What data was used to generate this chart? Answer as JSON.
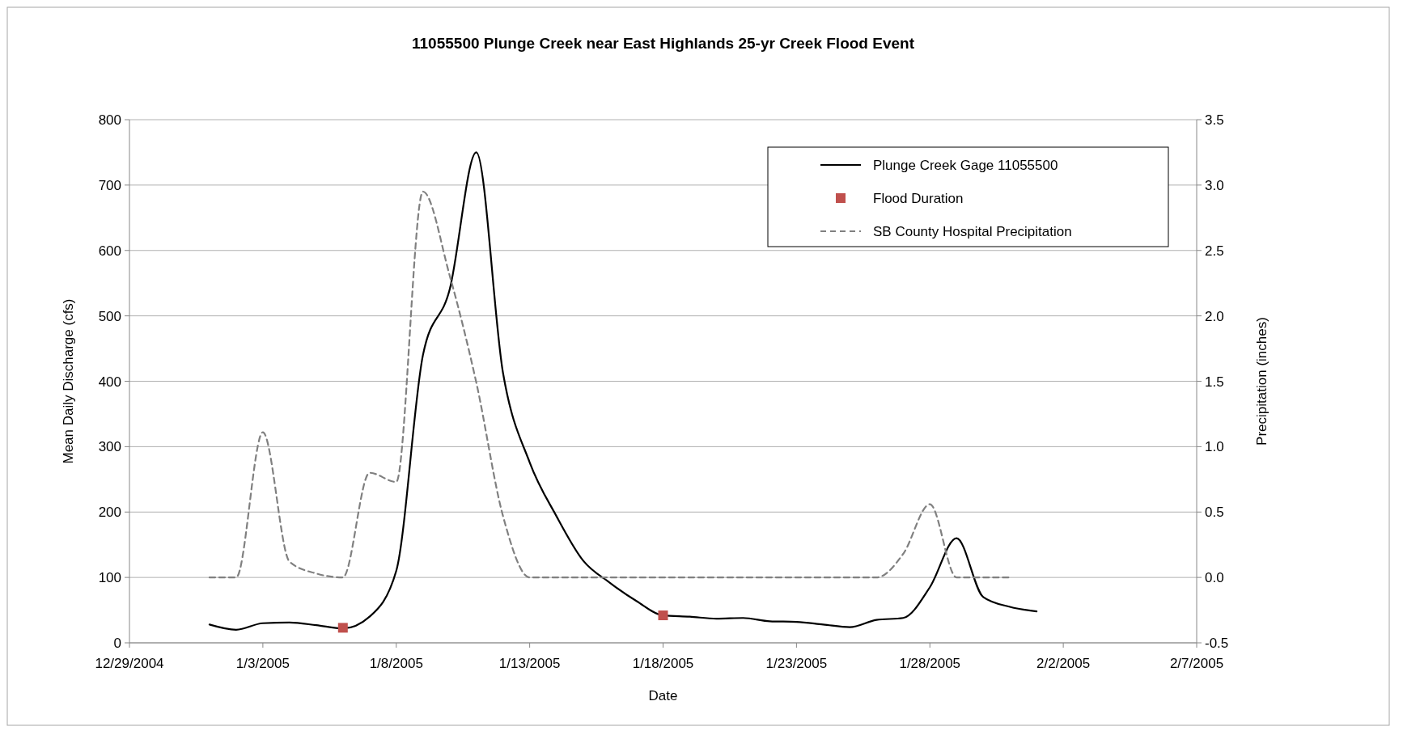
{
  "chart_data": {
    "type": "line",
    "title": "11055500 Plunge Creek near East Highlands 25-yr Creek Flood Event",
    "xlabel": "Date",
    "ylabel": "Mean Daily Discharge (cfs)",
    "y2label": "Precipitation (inches)",
    "xlim": [
      "2004-12-29",
      "2005-02-07"
    ],
    "xticks": [
      {
        "value": "2004-12-29",
        "label": "12/29/2004"
      },
      {
        "value": "2005-01-03",
        "label": "1/3/2005"
      },
      {
        "value": "2005-01-08",
        "label": "1/8/2005"
      },
      {
        "value": "2005-01-13",
        "label": "1/13/2005"
      },
      {
        "value": "2005-01-18",
        "label": "1/18/2005"
      },
      {
        "value": "2005-01-23",
        "label": "1/23/2005"
      },
      {
        "value": "2005-01-28",
        "label": "1/28/2005"
      },
      {
        "value": "2005-02-02",
        "label": "2/2/2005"
      },
      {
        "value": "2005-02-07",
        "label": "2/7/2005"
      }
    ],
    "ylim": [
      0,
      800
    ],
    "yticks": [
      0,
      100,
      200,
      300,
      400,
      500,
      600,
      700,
      800
    ],
    "y2lim": [
      -0.5,
      3.5
    ],
    "y2ticks": [
      {
        "value": -0.5,
        "label": "-0.5"
      },
      {
        "value": 0,
        "label": "0.0"
      },
      {
        "value": 0.5,
        "label": "0.5"
      },
      {
        "value": 1,
        "label": "1.0"
      },
      {
        "value": 1.5,
        "label": "1.5"
      },
      {
        "value": 2,
        "label": "2.0"
      },
      {
        "value": 2.5,
        "label": "2.5"
      },
      {
        "value": 3,
        "label": "3.0"
      },
      {
        "value": 3.5,
        "label": "3.5"
      }
    ],
    "grid": "y",
    "legend": "top right",
    "series": [
      {
        "name": "Plunge Creek Gage 11055500",
        "color": "#000000",
        "line_style": "solid",
        "x": [
          "2005-01-01",
          "2005-01-02",
          "2005-01-03",
          "2005-01-04",
          "2005-01-05",
          "2005-01-06",
          "2005-01-07",
          "2005-01-08",
          "2005-01-09",
          "2005-01-10",
          "2005-01-11",
          "2005-01-12",
          "2005-01-13",
          "2005-01-14",
          "2005-01-15",
          "2005-01-16",
          "2005-01-17",
          "2005-01-18",
          "2005-01-19",
          "2005-01-20",
          "2005-01-21",
          "2005-01-22",
          "2005-01-23",
          "2005-01-24",
          "2005-01-25",
          "2005-01-26",
          "2005-01-27",
          "2005-01-28",
          "2005-01-29",
          "2005-01-30",
          "2005-01-31",
          "2005-02-01"
        ],
        "values": [
          28,
          20,
          30,
          31,
          27,
          22,
          40,
          110,
          440,
          540,
          750,
          413,
          276,
          194,
          126,
          92,
          64,
          42,
          40,
          37,
          38,
          33,
          32,
          28,
          24,
          35,
          38,
          85,
          160,
          70,
          55,
          48
        ]
      },
      {
        "name": "Flood Duration",
        "type": "scatter",
        "color": "#c0504d",
        "marker": "square",
        "x": [
          "2005-01-06",
          "2005-01-18"
        ],
        "values": [
          23,
          42
        ]
      },
      {
        "name": "SB County Hospital Precipitation",
        "axis": "y2",
        "color": "#808080",
        "line_style": "dashed",
        "x": [
          "2005-01-01",
          "2005-01-02",
          "2005-01-03",
          "2005-01-04",
          "2005-01-05",
          "2005-01-06",
          "2005-01-07",
          "2005-01-08",
          "2005-01-09",
          "2005-01-10",
          "2005-01-11",
          "2005-01-12",
          "2005-01-13",
          "2005-01-14",
          "2005-01-15",
          "2005-01-16",
          "2005-01-17",
          "2005-01-18",
          "2005-01-19",
          "2005-01-20",
          "2005-01-21",
          "2005-01-22",
          "2005-01-23",
          "2005-01-24",
          "2005-01-25",
          "2005-01-26",
          "2005-01-27",
          "2005-01-28",
          "2005-01-29",
          "2005-01-30",
          "2005-01-31"
        ],
        "values": [
          0,
          0,
          1.11,
          0.12,
          0.03,
          0,
          0.8,
          0.73,
          2.95,
          2.31,
          1.49,
          0.47,
          0,
          0,
          0,
          0,
          0,
          0,
          0,
          0,
          0,
          0,
          0,
          0,
          0,
          0,
          0.18,
          0.56,
          0,
          0,
          0
        ]
      }
    ]
  }
}
